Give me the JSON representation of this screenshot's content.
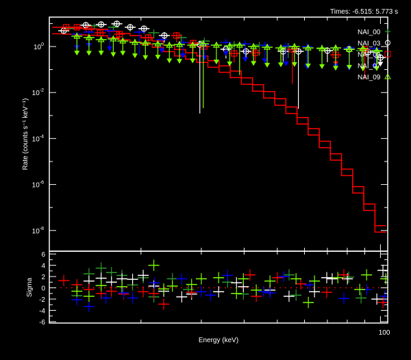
{
  "header": {
    "times_label": "Times: -6.515: 5.773 s"
  },
  "chart_data": {
    "type": "scatter",
    "title": "",
    "xlabel": "Energy (keV)",
    "ylabel": "Rate (counts s⁻¹ keV⁻¹)",
    "residual_ylabel": "Sigma",
    "xscale": "log",
    "xlim": [
      10.8,
      105
    ],
    "ylim_log10": [
      -8.9,
      1.28
    ],
    "residual_ylim": [
      -6.25,
      6.5
    ],
    "x_minor_ticks": [
      20,
      30,
      40,
      50,
      60,
      70,
      80,
      90
    ],
    "x_major_ticks": [
      {
        "value": 100,
        "label": "100"
      }
    ],
    "y_major_ticks": [
      {
        "exp": 0,
        "base": "10",
        "exp_label": "0"
      },
      {
        "exp": -2,
        "base": "10",
        "exp_label": "-2"
      },
      {
        "exp": -4,
        "base": "10",
        "exp_label": "-4"
      },
      {
        "exp": -6,
        "base": "10",
        "exp_label": "-6"
      },
      {
        "exp": -8,
        "base": "10",
        "exp_label": "-8"
      }
    ],
    "y_minor_ticks_exp": [
      1,
      -1,
      -3,
      -5,
      -7
    ],
    "residual_ticks": [
      {
        "value": 6,
        "label": "6"
      },
      {
        "value": 4,
        "label": "4"
      },
      {
        "value": 2,
        "label": "2"
      },
      {
        "value": 0,
        "label": "0"
      },
      {
        "value": -2,
        "label": "-2"
      },
      {
        "value": -4,
        "label": "-4"
      },
      {
        "value": -6,
        "label": "-6"
      }
    ],
    "residual_minor_ticks": [
      5,
      3,
      1,
      -1,
      -3,
      -5
    ],
    "model": {
      "color": "#ff0000",
      "bin_edges_log10_keV": [
        1.0414,
        2.0164
      ],
      "curves_log10_rate": [
        [
          0.835,
          0.82,
          0.79,
          0.77,
          0.75,
          0.66,
          0.57,
          0.48,
          0.38,
          0.24,
          0.06,
          -0.13,
          -0.27,
          -0.41,
          -0.62,
          -0.84,
          -1.07,
          -1.36,
          -1.66,
          -1.96,
          -2.27,
          -2.63,
          -3.09,
          -3.57,
          -4.12,
          -4.66,
          -5.33,
          -6.09,
          -6.85,
          -7.79
        ],
        [
          0.555,
          0.54,
          0.51,
          0.49,
          0.47,
          0.38,
          0.29,
          0.2,
          0.1,
          -0.04,
          -0.22,
          -0.41,
          -0.55,
          -0.69,
          -0.9,
          -1.12,
          -1.35,
          -1.64,
          -1.94,
          -2.24,
          -2.55,
          -2.91,
          -3.37,
          -3.85,
          -4.4,
          -4.94,
          -5.61,
          -6.37,
          -7.13,
          -8.07
        ]
      ]
    },
    "point_format": "[energy_keV, log10_rate, err_low_dex, err_high_dex, lower_arrow]",
    "series": [
      {
        "name": "NAI_00",
        "color": "#2e9a2e",
        "marker": "plus",
        "points": [
          [
            12.3,
            0.78,
            0.15,
            0.12,
            0
          ],
          [
            14.6,
            0.9,
            0.12,
            0.1,
            0
          ],
          [
            16.6,
            0.84,
            0.15,
            0.12,
            0
          ],
          [
            18.6,
            0.84,
            0.2,
            0.15,
            0
          ],
          [
            21.8,
            0.6,
            0.25,
            0.15,
            0
          ],
          [
            26.2,
            0.39,
            0.3,
            0.15,
            0
          ],
          [
            30.6,
            0.24,
            0.35,
            0.15,
            0
          ],
          [
            37.4,
            0.09,
            0.4,
            0.15,
            0
          ],
          [
            44.3,
            0.06,
            0.45,
            0.15,
            0
          ],
          [
            53.8,
            0,
            0.5,
            0.15,
            0
          ],
          [
            67.5,
            -0.06,
            0.5,
            0.15,
            0
          ],
          [
            88,
            -0.18,
            0.5,
            0.15,
            0
          ],
          [
            98,
            -0.21,
            0.5,
            0.15,
            0
          ]
        ],
        "residuals": [
          [
            13.0,
            -1.4
          ],
          [
            14.1,
            2.5
          ],
          [
            15.3,
            3.5
          ],
          [
            16.4,
            2.7
          ],
          [
            17.6,
            2.2
          ],
          [
            18.9,
            0.5
          ],
          [
            20.3,
            1.8
          ],
          [
            21.8,
            -1.6
          ],
          [
            24.7,
            1.6
          ],
          [
            27.5,
            -0.3
          ],
          [
            35.8,
            1.0
          ],
          [
            39.8,
            -1.1
          ],
          [
            54.1,
            2.3
          ],
          [
            56.7,
            -1.3
          ],
          [
            80.8,
            1.9
          ],
          [
            87.8,
            -1.8
          ]
        ]
      },
      {
        "name": "NAI_03",
        "color": "#ffffff",
        "marker": "circle",
        "points": [
          [
            11.9,
            0.69,
            0.1,
            0.1,
            0
          ],
          [
            13.8,
            0.93,
            0.1,
            0.1,
            0
          ],
          [
            15.3,
            0.96,
            0.1,
            0.1,
            0
          ],
          [
            17.0,
            0.99,
            0.12,
            0.1,
            0
          ],
          [
            18.6,
            0.84,
            0.15,
            0.1,
            0
          ],
          [
            20.4,
            0.78,
            0.2,
            0.12,
            0
          ],
          [
            23.4,
            0.48,
            0.3,
            0.15,
            0
          ],
          [
            29.7,
            0.09,
            3.0,
            0.15,
            0
          ],
          [
            35.4,
            -0.12,
            0.4,
            0.15,
            0
          ],
          [
            40.5,
            -0.21,
            0.4,
            0.15,
            0
          ],
          [
            52.0,
            -0.21,
            0.45,
            0.15,
            0
          ],
          [
            57.6,
            -0.21,
            2.5,
            0.15,
            0
          ],
          [
            70.0,
            -0.18,
            0.5,
            0.15,
            0
          ],
          [
            81.0,
            -0.12,
            0.5,
            0.15,
            0
          ],
          [
            92.0,
            -0.24,
            0.5,
            0.15,
            0
          ],
          [
            100.0,
            -0.48,
            0.3,
            0.15,
            1
          ]
        ],
        "residuals": [
          [
            14.1,
            1.2
          ],
          [
            15.3,
            1.7
          ],
          [
            16.4,
            1.0
          ],
          [
            17.6,
            1.6
          ],
          [
            18.9,
            1.5
          ],
          [
            20.3,
            2.2
          ],
          [
            21.8,
            0.3
          ],
          [
            23.3,
            -0.6
          ],
          [
            26.3,
            -1.6
          ],
          [
            28.1,
            -1.1
          ],
          [
            33.7,
            -0.7
          ],
          [
            38.0,
            0.9
          ],
          [
            39.8,
            0.2
          ],
          [
            47.6,
            -0.4
          ],
          [
            54.1,
            -1.5
          ],
          [
            64.2,
            -0.7
          ],
          [
            69.7,
            1.8
          ],
          [
            72.3,
            1.6
          ],
          [
            80.1,
            1.6
          ],
          [
            97.6,
            -2.0
          ],
          [
            101.7,
            3.1
          ]
        ]
      },
      {
        "name": "NAI_08",
        "color": "#ff0000",
        "marker": "square",
        "points": [
          [
            12.1,
            0.84,
            0.1,
            0.1,
            0
          ],
          [
            13.0,
            0.84,
            0.1,
            0.1,
            0
          ],
          [
            14.1,
            0.75,
            0.12,
            0.1,
            0
          ],
          [
            15.2,
            0.6,
            0.15,
            0.1,
            0
          ],
          [
            17.3,
            0.54,
            0.2,
            0.12,
            0
          ],
          [
            21.0,
            0.39,
            0.25,
            0.15,
            0
          ],
          [
            25.4,
            0.48,
            0.3,
            0.15,
            0
          ],
          [
            28.4,
            0.15,
            0.35,
            0.15,
            0
          ],
          [
            30.6,
            0,
            0.4,
            0.15,
            0
          ],
          [
            37.4,
            -0.3,
            0.4,
            0.15,
            0
          ],
          [
            43.1,
            -0.27,
            0.45,
            0.15,
            0
          ],
          [
            55.3,
            -0.12,
            1.5,
            0.15,
            0
          ],
          [
            74.0,
            -0.36,
            0.4,
            0.15,
            1
          ],
          [
            90.0,
            -0.12,
            1.3,
            0.15,
            0
          ]
        ],
        "residuals": [
          [
            11.9,
            1.3
          ],
          [
            13.0,
            0.55
          ],
          [
            14.1,
            -0.3
          ],
          [
            15.3,
            -1.0
          ],
          [
            16.4,
            -0.6
          ],
          [
            17.8,
            -1.1
          ],
          [
            20.3,
            -0.7
          ],
          [
            21.8,
            -1.0
          ],
          [
            23.3,
            -2.9
          ],
          [
            28.1,
            -0.8
          ],
          [
            41.6,
            2.3
          ],
          [
            43.4,
            -1.5
          ],
          [
            50.0,
            1.8
          ],
          [
            58.5,
            0.7
          ],
          [
            69.7,
            -0.8
          ],
          [
            78.2,
            2.3
          ],
          [
            101.7,
            -2.6
          ]
        ]
      },
      {
        "name": "NAI_07",
        "color": "#0000ff",
        "marker": "none",
        "points": [
          [
            13.0,
            0.54,
            0.6,
            0.1,
            1
          ],
          [
            14.1,
            0.63,
            0.6,
            0.1,
            1
          ],
          [
            16.2,
            0.69,
            0.8,
            0.1,
            1
          ],
          [
            19.8,
            0.63,
            1.0,
            0.12,
            0
          ],
          [
            23.0,
            0.3,
            0.5,
            0.15,
            1
          ],
          [
            26.5,
            0.18,
            0.6,
            0.15,
            1
          ],
          [
            30.6,
            0.09,
            0.6,
            0.15,
            1
          ],
          [
            35.4,
            0.18,
            0.5,
            0.15,
            1
          ],
          [
            40.3,
            0.12,
            0.7,
            0.15,
            1
          ],
          [
            46.0,
            0.06,
            0.7,
            0.15,
            1
          ],
          [
            53.0,
            0.03,
            0.8,
            0.15,
            1
          ],
          [
            61.0,
            0,
            0.9,
            0.15,
            1
          ],
          [
            74.0,
            -0.06,
            0.8,
            0.15,
            1
          ],
          [
            81.0,
            -0.06,
            0.9,
            0.15,
            1
          ],
          [
            96.0,
            -0.09,
            0.8,
            0.15,
            1
          ]
        ],
        "residuals": [
          [
            13.0,
            -2.1
          ],
          [
            14.1,
            -3.3
          ],
          [
            15.8,
            -1.8
          ],
          [
            17.8,
            -0.9
          ],
          [
            18.9,
            -1.8
          ],
          [
            21.9,
            0.9
          ],
          [
            26.3,
            1.6
          ],
          [
            30.0,
            -0.7
          ],
          [
            31.9,
            -1.3
          ],
          [
            35.8,
            2.2
          ],
          [
            45.6,
            -0.7
          ],
          [
            47.6,
            -0.9
          ],
          [
            52.2,
            2.0
          ],
          [
            62.2,
            0.5
          ],
          [
            78.2,
            -1.9
          ],
          [
            91.1,
            -0.3
          ],
          [
            103.1,
            -1.5
          ]
        ]
      },
      {
        "name": "NAI_09",
        "color": "#80ff00",
        "marker": "triangle",
        "points": [
          [
            13.0,
            0.45,
            0.75,
            0.15,
            1
          ],
          [
            14.1,
            0.39,
            0.7,
            0.15,
            1
          ],
          [
            15.3,
            0.3,
            0.6,
            0.15,
            1
          ],
          [
            16.6,
            0.33,
            0.7,
            0.15,
            1
          ],
          [
            17.7,
            0.24,
            0.55,
            0.15,
            1
          ],
          [
            19.2,
            0.18,
            0.6,
            0.15,
            1
          ],
          [
            20.6,
            0.15,
            0.65,
            0.15,
            1
          ],
          [
            22.4,
            0.12,
            0.6,
            0.15,
            1
          ],
          [
            24.2,
            0.06,
            0.7,
            0.15,
            1
          ],
          [
            25.9,
            0.09,
            0.75,
            0.15,
            1
          ],
          [
            28.3,
            0.06,
            0.7,
            0.15,
            1
          ],
          [
            30.4,
            0.12,
            2.8,
            0.15,
            0
          ],
          [
            33.2,
            0.06,
            0.75,
            0.15,
            1
          ],
          [
            36.3,
            0.03,
            0.8,
            0.15,
            1
          ],
          [
            38.8,
            0.06,
            1.3,
            0.15,
            0
          ],
          [
            42.6,
            0,
            0.75,
            0.15,
            1
          ],
          [
            46.7,
            -0.03,
            0.8,
            0.15,
            1
          ],
          [
            51.2,
            -0.06,
            0.75,
            0.15,
            1
          ],
          [
            56.1,
            0,
            0.8,
            0.15,
            1
          ],
          [
            61.5,
            -0.06,
            0.8,
            0.15,
            1
          ],
          [
            67.5,
            -0.09,
            0.8,
            0.15,
            1
          ],
          [
            74.0,
            -0.06,
            0.9,
            0.15,
            1
          ],
          [
            81.1,
            -0.12,
            0.8,
            0.15,
            1
          ],
          [
            88.9,
            -0.09,
            0.9,
            0.15,
            1
          ],
          [
            97.5,
            -0.18,
            0.8,
            0.15,
            1
          ]
        ],
        "residuals": [
          [
            13.0,
            -0.6
          ],
          [
            14.1,
            -1.5
          ],
          [
            15.3,
            0.4
          ],
          [
            17.6,
            0.2
          ],
          [
            21.8,
            4.0
          ],
          [
            23.3,
            -0.2
          ],
          [
            24.7,
            0.3
          ],
          [
            28.1,
            0.6
          ],
          [
            30.0,
            1.6
          ],
          [
            33.7,
            1.8
          ],
          [
            38.0,
            -1.0
          ],
          [
            39.8,
            1.6
          ],
          [
            43.4,
            -0.4
          ],
          [
            47.6,
            1.2
          ],
          [
            56.7,
            1.6
          ],
          [
            61.6,
            -2.6
          ],
          [
            64.2,
            1.2
          ],
          [
            75.1,
            1.8
          ],
          [
            87.0,
            -0.3
          ],
          [
            91.1,
            2.3
          ],
          [
            103.6,
            1.6
          ]
        ]
      }
    ],
    "legend_placement": "top-right"
  }
}
